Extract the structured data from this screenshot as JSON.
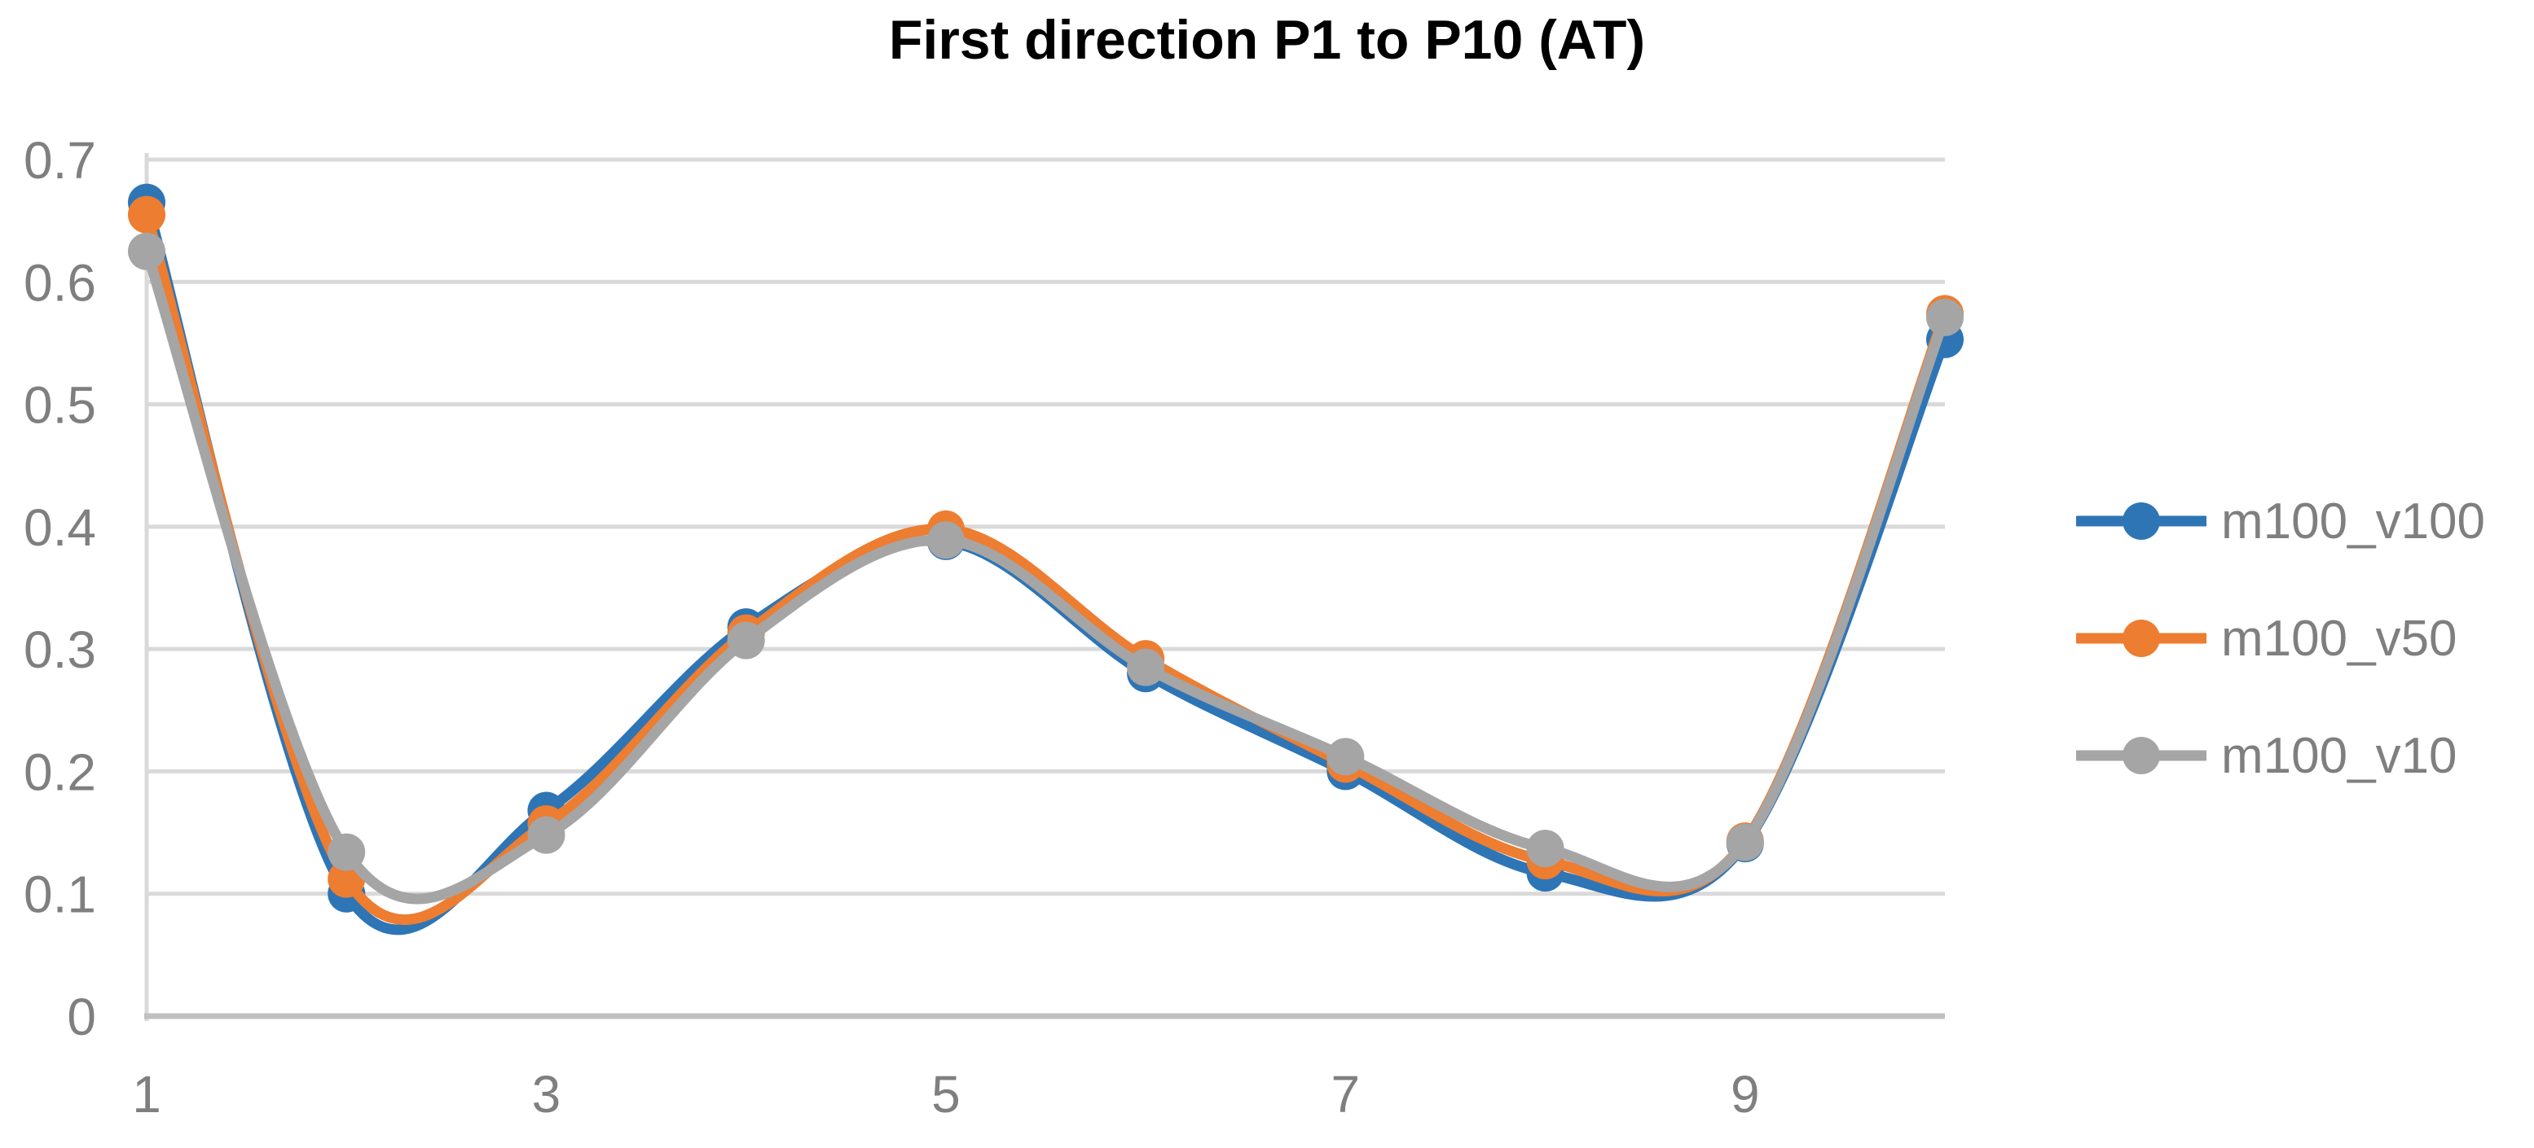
{
  "chart_data": {
    "type": "line",
    "title": "First direction P1 to P10 (AT)",
    "x": [
      1,
      2,
      3,
      4,
      5,
      6,
      7,
      8,
      9,
      10
    ],
    "xlabel": "",
    "ylabel": "",
    "xlim": [
      1,
      10
    ],
    "ylim": [
      0,
      0.7
    ],
    "x_tick_positions": [
      1,
      3,
      5,
      7,
      9
    ],
    "x_tick_labels": [
      "1",
      "3",
      "5",
      "7",
      "9"
    ],
    "y_tick_values": [
      0,
      0.1,
      0.2,
      0.3,
      0.4,
      0.5,
      0.6,
      0.7
    ],
    "y_tick_labels": [
      "0",
      "0.1",
      "0.2",
      "0.3",
      "0.4",
      "0.5",
      "0.6",
      "0.7"
    ],
    "grid": "horizontal-only",
    "smooth_lines": true,
    "markers": "circle",
    "legend_position": "right",
    "series": [
      {
        "name": "m100_v100",
        "color": "#2E75B6",
        "values": [
          0.665,
          0.1,
          0.168,
          0.318,
          0.388,
          0.28,
          0.2,
          0.117,
          0.141,
          0.553
        ]
      },
      {
        "name": "m100_v50",
        "color": "#ED7D31",
        "values": [
          0.655,
          0.112,
          0.157,
          0.313,
          0.398,
          0.292,
          0.206,
          0.127,
          0.143,
          0.574
        ]
      },
      {
        "name": "m100_v10",
        "color": "#A5A5A5",
        "values": [
          0.625,
          0.134,
          0.148,
          0.307,
          0.389,
          0.285,
          0.212,
          0.137,
          0.142,
          0.571
        ]
      }
    ],
    "styles": {
      "gridline_color": "#D9D9D9",
      "axis_line_color": "#BFBFBF",
      "tick_label_color": "#7F7F7F",
      "legend_text_color": "#7F7F7F",
      "title_color": "#000000",
      "background": "#FFFFFF"
    }
  }
}
